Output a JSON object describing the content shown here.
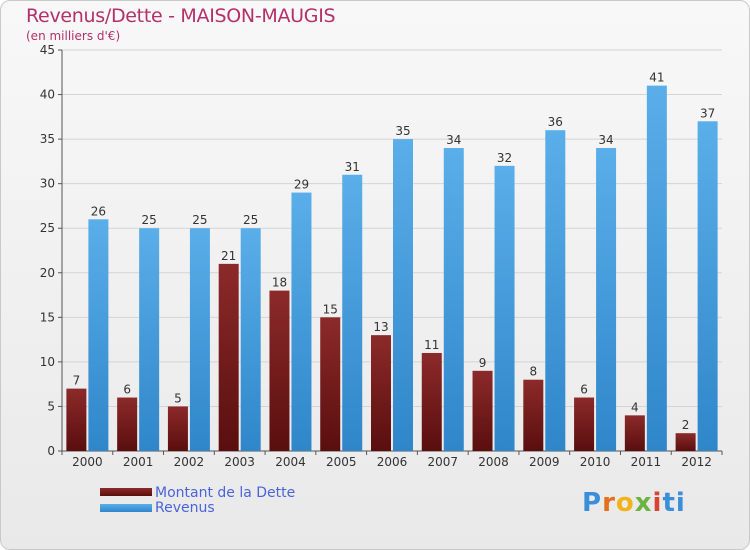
{
  "header": {
    "title": "Revenus/Dette - MAISON-MAUGIS",
    "subtitle": "(en milliers d'€)"
  },
  "legend": {
    "debt_label": "Montant de la Dette",
    "revenue_label": "Revenus"
  },
  "logo": {
    "text": "Proxiti",
    "letters": [
      "P",
      "r",
      "o",
      "x",
      "i",
      "ti"
    ]
  },
  "colors": {
    "debt": "#7a1c1c",
    "debt_light": "#8c2a2a",
    "debt_dark": "#5a0e0e",
    "revenue": "#4da6e6",
    "revenue_light": "#5aaee9",
    "revenue_dark": "#2f86c9",
    "title": "#b4306b"
  },
  "chart_data": {
    "type": "bar",
    "title": "Revenus/Dette - MAISON-MAUGIS",
    "subtitle": "(en milliers d'€)",
    "xlabel": "",
    "ylabel": "",
    "ylim": [
      0,
      45
    ],
    "yticks": [
      0,
      5,
      10,
      15,
      20,
      25,
      30,
      35,
      40,
      45
    ],
    "grid": true,
    "legend_position": "bottom-left",
    "categories": [
      "2000",
      "2001",
      "2002",
      "2003",
      "2004",
      "2005",
      "2006",
      "2007",
      "2008",
      "2009",
      "2010",
      "2011",
      "2012"
    ],
    "series": [
      {
        "name": "Montant de la Dette",
        "values": [
          7,
          6,
          5,
          21,
          18,
          15,
          13,
          11,
          9,
          8,
          6,
          4,
          2
        ]
      },
      {
        "name": "Revenus",
        "values": [
          26,
          25,
          25,
          25,
          29,
          31,
          35,
          34,
          32,
          36,
          34,
          41,
          37
        ]
      }
    ]
  }
}
